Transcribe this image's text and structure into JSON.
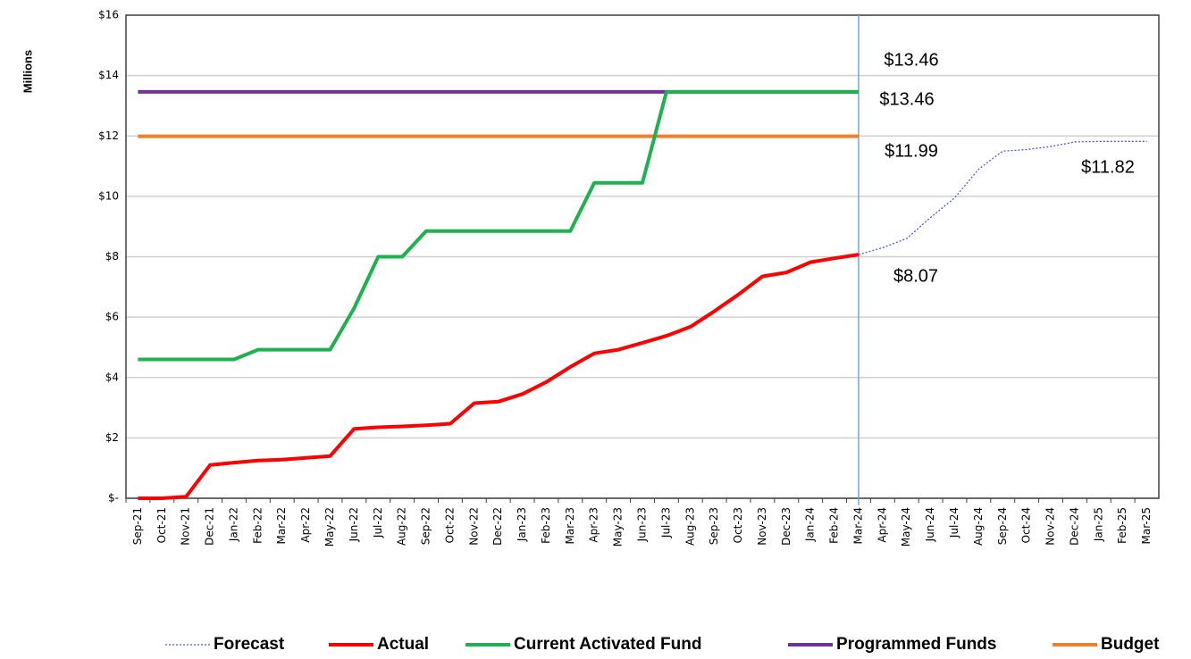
{
  "chart_data": {
    "type": "line",
    "y_axis_label": "Millions",
    "categories": [
      "Sep-21",
      "Oct-21",
      "Nov-21",
      "Dec-21",
      "Jan-22",
      "Feb-22",
      "Mar-22",
      "Apr-22",
      "May-22",
      "Jun-22",
      "Jul-22",
      "Aug-22",
      "Sep-22",
      "Oct-22",
      "Nov-22",
      "Dec-22",
      "Jan-23",
      "Feb-23",
      "Mar-23",
      "Apr-23",
      "May-23",
      "Jun-23",
      "Jul-23",
      "Aug-23",
      "Sep-23",
      "Oct-23",
      "Nov-23",
      "Dec-23",
      "Jan-24",
      "Feb-24",
      "Mar-24",
      "Apr-24",
      "May-24",
      "Jun-24",
      "Jul-24",
      "Aug-24",
      "Sep-24",
      "Oct-24",
      "Nov-24",
      "Dec-24",
      "Jan-25",
      "Feb-25",
      "Mar-25"
    ],
    "series": [
      {
        "name": "Forecast",
        "color": "#4a5bdb",
        "line_style": "dotted",
        "values": [
          null,
          null,
          null,
          null,
          null,
          null,
          null,
          null,
          null,
          null,
          null,
          null,
          null,
          null,
          null,
          null,
          null,
          null,
          null,
          null,
          null,
          null,
          null,
          null,
          null,
          null,
          null,
          null,
          null,
          null,
          8.07,
          8.3,
          8.6,
          9.3,
          9.95,
          10.9,
          11.5,
          11.55,
          11.65,
          11.8,
          11.82,
          11.82,
          11.82
        ]
      },
      {
        "name": "Actual",
        "color": "#ff0000",
        "line_style": "solid",
        "values": [
          0,
          0,
          0.05,
          1.1,
          1.18,
          1.25,
          1.28,
          1.34,
          1.4,
          2.3,
          2.35,
          2.38,
          2.42,
          2.47,
          3.15,
          3.2,
          3.45,
          3.85,
          4.35,
          4.8,
          4.92,
          5.15,
          5.38,
          5.68,
          6.2,
          6.75,
          7.35,
          7.48,
          7.82,
          7.95,
          8.07,
          null,
          null,
          null,
          null,
          null,
          null,
          null,
          null,
          null,
          null,
          null,
          null
        ]
      },
      {
        "name": "Current Activated Fund",
        "color": "#1fb14f",
        "line_style": "solid",
        "values": [
          4.6,
          4.6,
          4.6,
          4.6,
          4.6,
          4.92,
          4.92,
          4.92,
          4.92,
          6.3,
          8.0,
          8.0,
          8.85,
          8.85,
          8.85,
          8.85,
          8.85,
          8.85,
          8.85,
          10.45,
          10.45,
          10.45,
          13.46,
          13.46,
          13.46,
          13.46,
          13.46,
          13.46,
          13.46,
          13.46,
          13.46,
          null,
          null,
          null,
          null,
          null,
          null,
          null,
          null,
          null,
          null,
          null,
          null
        ]
      },
      {
        "name": "Programmed Funds",
        "color": "#7030a0",
        "line_style": "solid",
        "values": [
          13.46,
          13.46,
          13.46,
          13.46,
          13.46,
          13.46,
          13.46,
          13.46,
          13.46,
          13.46,
          13.46,
          13.46,
          13.46,
          13.46,
          13.46,
          13.46,
          13.46,
          13.46,
          13.46,
          13.46,
          13.46,
          13.46,
          13.46,
          13.46,
          13.46,
          13.46,
          13.46,
          13.46,
          13.46,
          13.46,
          13.46,
          null,
          null,
          null,
          null,
          null,
          null,
          null,
          null,
          null,
          null,
          null,
          null
        ]
      },
      {
        "name": "Budget",
        "color": "#f07f2a",
        "line_style": "solid",
        "values": [
          11.99,
          11.99,
          11.99,
          11.99,
          11.99,
          11.99,
          11.99,
          11.99,
          11.99,
          11.99,
          11.99,
          11.99,
          11.99,
          11.99,
          11.99,
          11.99,
          11.99,
          11.99,
          11.99,
          11.99,
          11.99,
          11.99,
          11.99,
          11.99,
          11.99,
          11.99,
          11.99,
          11.99,
          11.99,
          11.99,
          11.99,
          null,
          null,
          null,
          null,
          null,
          null,
          null,
          null,
          null,
          null,
          null,
          null
        ]
      }
    ],
    "annotations": [
      {
        "text": "$13.46",
        "color": "#1fb14f"
      },
      {
        "text": "$13.46",
        "color": "#7030a0"
      },
      {
        "text": "$11.99",
        "color": "#f07f2a"
      },
      {
        "text": "$8.07",
        "color": "#ff0000"
      },
      {
        "text": "$11.82",
        "color": "#0000ff"
      }
    ],
    "ylim": [
      0,
      16
    ],
    "yticks": [
      {
        "value": 0,
        "label": "$-"
      },
      {
        "value": 2,
        "label": "$2"
      },
      {
        "value": 4,
        "label": "$4"
      },
      {
        "value": 6,
        "label": "$6"
      },
      {
        "value": 8,
        "label": "$8"
      },
      {
        "value": 10,
        "label": "$10"
      },
      {
        "value": 12,
        "label": "$12"
      },
      {
        "value": 14,
        "label": "$14"
      },
      {
        "value": 16,
        "label": "$16"
      }
    ],
    "grid": true,
    "legend": "bottom"
  }
}
